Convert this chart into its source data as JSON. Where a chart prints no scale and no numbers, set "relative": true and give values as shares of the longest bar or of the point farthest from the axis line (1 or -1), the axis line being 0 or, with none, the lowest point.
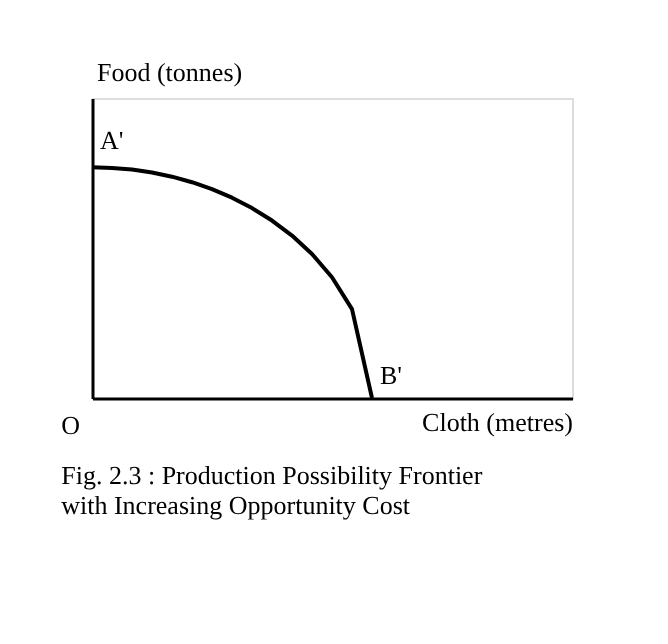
{
  "chart_data": {
    "type": "line",
    "relative": true,
    "title": "Fig. 2.3 : Production Possibility Frontier with Increasing Opportunity Cost",
    "xlabel": "Cloth (metres)",
    "ylabel": "Food (tonnes)",
    "categories": [
      null,
      null,
      null,
      null,
      null,
      null,
      null,
      null,
      null,
      null,
      null,
      null,
      null,
      null,
      null,
      null,
      null,
      null,
      null,
      null,
      null,
      null,
      null,
      null,
      null
    ],
    "values": [
      1,
      0.997,
      0.99,
      0.977,
      0.959,
      0.935,
      0.905,
      0.868,
      0.823,
      0.769,
      0.704,
      0.624,
      0.523,
      0.385,
      0,
      null,
      null,
      null,
      null,
      null,
      null,
      null,
      null,
      null,
      null
    ],
    "color": "#000000",
    "annotations": [
      "A'",
      "B'",
      "O"
    ],
    "grid": false,
    "marker": "none",
    "line_style": "solid"
  }
}
